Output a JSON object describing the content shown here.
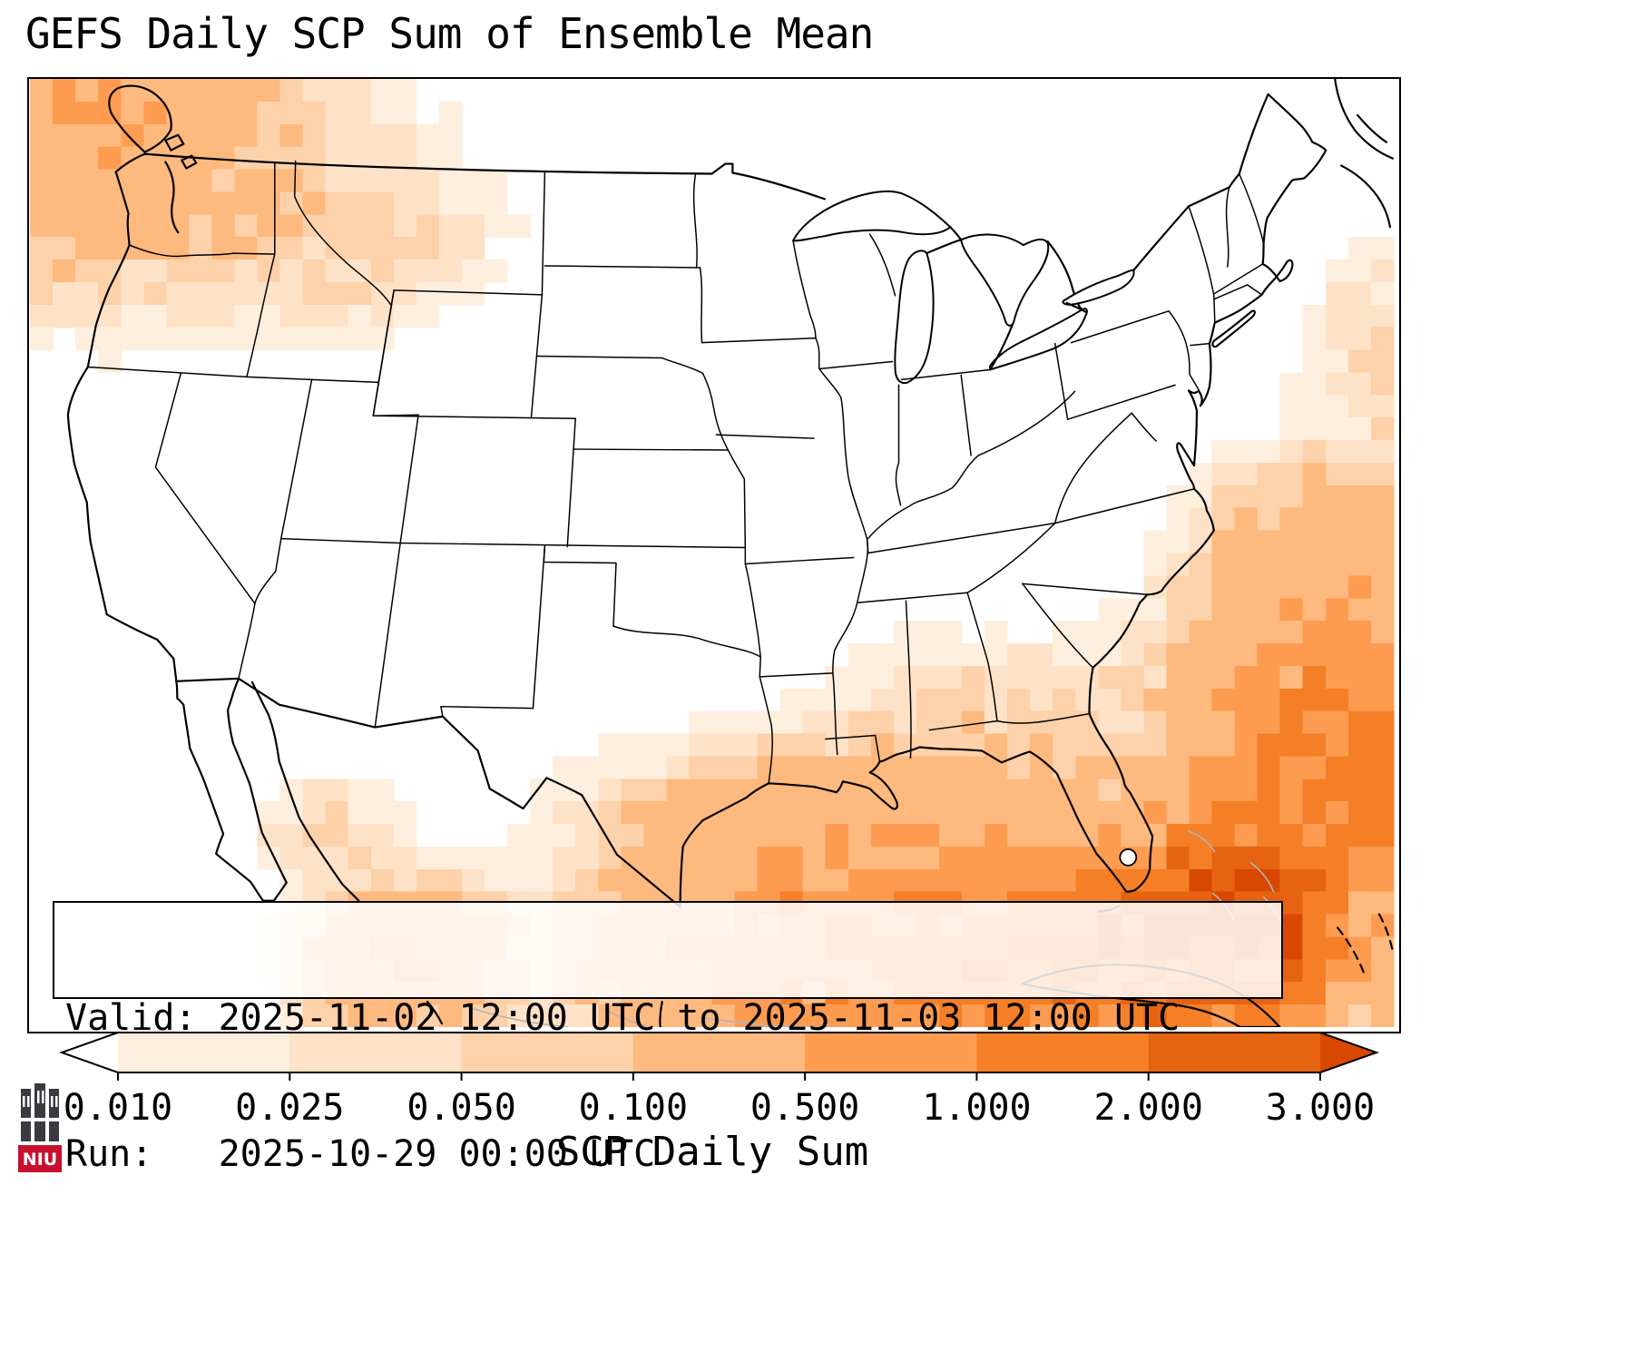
{
  "title": "GEFS Daily SCP Sum of Ensemble Mean",
  "info_box": {
    "valid_line": "Valid: 2025-11-02 12:00 UTC to 2025-11-03 12:00 UTC",
    "run_line": "Run:   2025-10-29 00:00 UTC"
  },
  "colorbar": {
    "label": "SCP Daily Sum",
    "tick_labels": [
      "0.010",
      "0.025",
      "0.050",
      "0.100",
      "0.500",
      "1.000",
      "2.000",
      "3.000"
    ]
  },
  "logo": {
    "text": "NIU",
    "red": "#c8102e",
    "dark": "#3a3a40"
  },
  "chart_data": {
    "type": "heatmap",
    "title": "GEFS Daily SCP Sum of Ensemble Mean",
    "variable": "SCP Daily Sum",
    "valid_period": "2025-11-02 12:00 UTC to 2025-11-03 12:00 UTC",
    "model_run": "2025-10-29 00:00 UTC",
    "levels": [
      0.01,
      0.025,
      0.05,
      0.1,
      0.5,
      1.0,
      2.0,
      3.0
    ],
    "bin_colors": [
      "#feeedd",
      "#fde2c7",
      "#fdd1a9",
      "#fdb97e",
      "#fd9c51",
      "#f57f27",
      "#e66411"
    ],
    "over_color": "#d94801",
    "under_color": "#ffffff",
    "grid": {
      "nx": 60,
      "ny": 42
    },
    "hotspots": [
      {
        "name": "pacific-northwest-offshore",
        "cx": 0.03,
        "cy": 0.02,
        "rx": 0.13,
        "ry": 0.16,
        "peak": 0.55
      },
      {
        "name": "pnw-inland",
        "cx": 0.12,
        "cy": 0.12,
        "rx": 0.2,
        "ry": 0.16,
        "peak": 0.08
      },
      {
        "name": "northern-rockies",
        "cx": 0.25,
        "cy": 0.18,
        "rx": 0.1,
        "ry": 0.09,
        "peak": 0.035
      },
      {
        "name": "gulf-of-mexico-central",
        "cx": 0.6,
        "cy": 0.92,
        "rx": 0.17,
        "ry": 0.13,
        "peak": 1.1
      },
      {
        "name": "gulf-of-mexico-east",
        "cx": 0.78,
        "cy": 0.93,
        "rx": 0.13,
        "ry": 0.11,
        "peak": 2.2
      },
      {
        "name": "florida-straits-cuba",
        "cx": 0.885,
        "cy": 0.89,
        "rx": 0.085,
        "ry": 0.12,
        "peak": 3.4
      },
      {
        "name": "atlantic-southeast",
        "cx": 0.97,
        "cy": 0.72,
        "rx": 0.13,
        "ry": 0.19,
        "peak": 1.3
      },
      {
        "name": "atlantic-carolinas",
        "cx": 0.945,
        "cy": 0.52,
        "rx": 0.09,
        "ry": 0.12,
        "peak": 0.25
      },
      {
        "name": "atlantic-northeast",
        "cx": 1.0,
        "cy": 0.3,
        "rx": 0.07,
        "ry": 0.14,
        "peak": 0.06
      },
      {
        "name": "gulf-coast-states",
        "cx": 0.64,
        "cy": 0.78,
        "rx": 0.2,
        "ry": 0.09,
        "peak": 0.3
      },
      {
        "name": "southeast-inland",
        "cx": 0.7,
        "cy": 0.66,
        "rx": 0.13,
        "ry": 0.09,
        "peak": 0.05
      },
      {
        "name": "mexico-pacific-coast",
        "cx": 0.275,
        "cy": 0.93,
        "rx": 0.075,
        "ry": 0.08,
        "peak": 0.5
      },
      {
        "name": "baja-gulf-of-california",
        "cx": 0.22,
        "cy": 0.8,
        "rx": 0.06,
        "ry": 0.07,
        "peak": 0.06
      },
      {
        "name": "texas-coast-speckle",
        "cx": 0.5,
        "cy": 0.78,
        "rx": 0.07,
        "ry": 0.05,
        "peak": 0.05
      }
    ]
  }
}
